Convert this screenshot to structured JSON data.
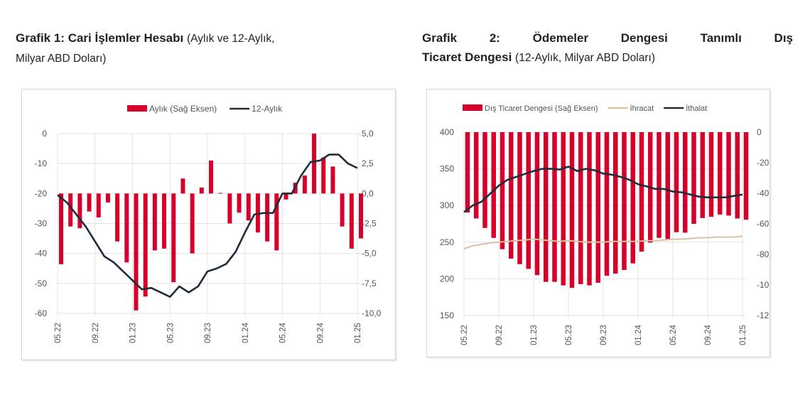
{
  "charts": [
    {
      "title_bold": "Grafik 1: Cari İşlemler Hesabı",
      "title_rest_1": "(Aylık ve 12-Aylık,",
      "title_rest_2": "Milyar ABD Doları)"
    },
    {
      "title_bold_1": "Grafik 2: Ödemeler Dengesi Tanımlı Dış",
      "title_bold_2": "Ticaret Dengesi",
      "title_rest": "(12-Aylık, Milyar ABD Doları)"
    }
  ],
  "chart_data": [
    {
      "type": "bar+line",
      "months": [
        "05.22",
        "06.22",
        "07.22",
        "08.22",
        "09.22",
        "10.22",
        "11.22",
        "12.22",
        "01.23",
        "02.23",
        "03.23",
        "04.23",
        "05.23",
        "06.23",
        "07.23",
        "08.23",
        "09.23",
        "10.23",
        "11.23",
        "12.23",
        "01.24",
        "02.24",
        "03.24",
        "04.24",
        "05.24",
        "06.24",
        "07.24",
        "08.24",
        "09.24",
        "10.24",
        "11.24",
        "12.24",
        "01.25"
      ],
      "x_tick_labels": [
        "05.22",
        "09.22",
        "01.23",
        "05.23",
        "09.23",
        "01.24",
        "05.24",
        "09.24",
        "01.25"
      ],
      "left_axis": {
        "ylim": [
          -60,
          0
        ],
        "ticks": [
          "0",
          "-10",
          "-20",
          "-30",
          "-40",
          "-50",
          "-60"
        ],
        "tick_values": [
          0,
          -10,
          -20,
          -30,
          -40,
          -50,
          -60
        ]
      },
      "right_axis": {
        "ylim": [
          -10,
          5
        ],
        "ticks": [
          "5,0",
          "2,5",
          "0,0",
          "-2,5",
          "-5,0",
          "-7,5",
          "-10,0"
        ],
        "tick_values": [
          5,
          2.5,
          0,
          -2.5,
          -5,
          -7.5,
          -10
        ]
      },
      "grid": true,
      "legend_position": "top",
      "series": [
        {
          "name": "Aylık (Sağ Eksen)",
          "type": "bar",
          "axis": "right",
          "color": "#d6002a",
          "values": [
            -5.9,
            -2.75,
            -2.9,
            -1.5,
            -2.0,
            -0.75,
            -4.0,
            -5.75,
            -9.75,
            -8.6,
            -4.75,
            -4.6,
            -7.4,
            1.25,
            -5.0,
            0.5,
            2.75,
            0.05,
            -2.5,
            -1.6,
            -2.25,
            -3.25,
            -4.0,
            -4.75,
            -0.5,
            0.9,
            1.5,
            5.0,
            3.0,
            2.25,
            -2.75,
            -4.6,
            -3.75
          ]
        },
        {
          "name": "12-Aylık",
          "type": "line",
          "axis": "left",
          "color": "#1f2d3a",
          "values": [
            -20.5,
            -23,
            -27,
            -31,
            -36,
            -41,
            -43,
            -46,
            -49,
            -52,
            -51.5,
            -53,
            -54.5,
            -51,
            -53,
            -51,
            -46,
            -45,
            -43.5,
            -39.5,
            -33,
            -27,
            -26.5,
            -26.5,
            -20,
            -20,
            -14,
            -9.5,
            -9,
            -7,
            -7,
            -10,
            -11.5
          ]
        }
      ]
    },
    {
      "type": "bar+line",
      "months": [
        "05.22",
        "06.22",
        "07.22",
        "08.22",
        "09.22",
        "10.22",
        "11.22",
        "12.22",
        "01.23",
        "02.23",
        "03.23",
        "04.23",
        "05.23",
        "06.23",
        "07.23",
        "08.23",
        "09.23",
        "10.23",
        "11.23",
        "12.23",
        "01.24",
        "02.24",
        "03.24",
        "04.24",
        "05.24",
        "06.24",
        "07.24",
        "08.24",
        "09.24",
        "10.24",
        "11.24",
        "12.24",
        "01.25"
      ],
      "x_tick_labels": [
        "05.22",
        "09.22",
        "01.23",
        "05.23",
        "09.23",
        "01.24",
        "05.24",
        "09.24",
        "01.25"
      ],
      "left_axis": {
        "ylim": [
          150,
          400
        ],
        "ticks": [
          "400",
          "350",
          "300",
          "250",
          "200",
          "150"
        ],
        "tick_values": [
          400,
          350,
          300,
          250,
          200,
          150
        ]
      },
      "right_axis": {
        "ylim": [
          -120,
          0
        ],
        "ticks": [
          "0",
          "-20",
          "-40",
          "-60",
          "-80",
          "-100",
          "-120"
        ],
        "tick_values": [
          0,
          -20,
          -40,
          -60,
          -80,
          -100,
          -120
        ]
      },
      "grid": true,
      "legend_position": "top",
      "series": [
        {
          "name": "Dış Ticaret Dengesi (Sağ Eksen)",
          "type": "bar",
          "axis": "right",
          "color": "#d6002a",
          "values": [
            -52.6,
            -56.5,
            -62.7,
            -69.2,
            -76.6,
            -82.8,
            -86.4,
            -89.5,
            -93.6,
            -98,
            -98,
            -100.3,
            -101.9,
            -99.5,
            -100.3,
            -98.6,
            -94,
            -92.6,
            -90.2,
            -85.9,
            -78.2,
            -72.3,
            -69.2,
            -70,
            -65.5,
            -65.8,
            -60,
            -56.2,
            -55.4,
            -53.9,
            -54.6,
            -56.5,
            -57.3
          ]
        },
        {
          "name": "İhracat",
          "type": "line",
          "axis": "left",
          "color": "#d9c3a0",
          "values": [
            241,
            245,
            247,
            249,
            250,
            251,
            252,
            253,
            254,
            253,
            252,
            251,
            252,
            251,
            250,
            250,
            250,
            251,
            251,
            251,
            251,
            252,
            252,
            253,
            254,
            254,
            255,
            256,
            256,
            257,
            257,
            257,
            258
          ]
        },
        {
          "name": "İthalat",
          "type": "line",
          "axis": "left",
          "color": "#1f2d3a",
          "values": [
            291,
            300,
            305,
            316,
            327,
            335,
            339,
            343,
            347,
            350,
            350,
            349,
            353,
            347,
            350,
            348,
            343.5,
            342,
            339,
            335,
            329,
            326,
            322.5,
            322.5,
            319,
            318,
            315,
            312,
            311,
            311,
            311,
            313,
            315
          ]
        }
      ]
    }
  ]
}
